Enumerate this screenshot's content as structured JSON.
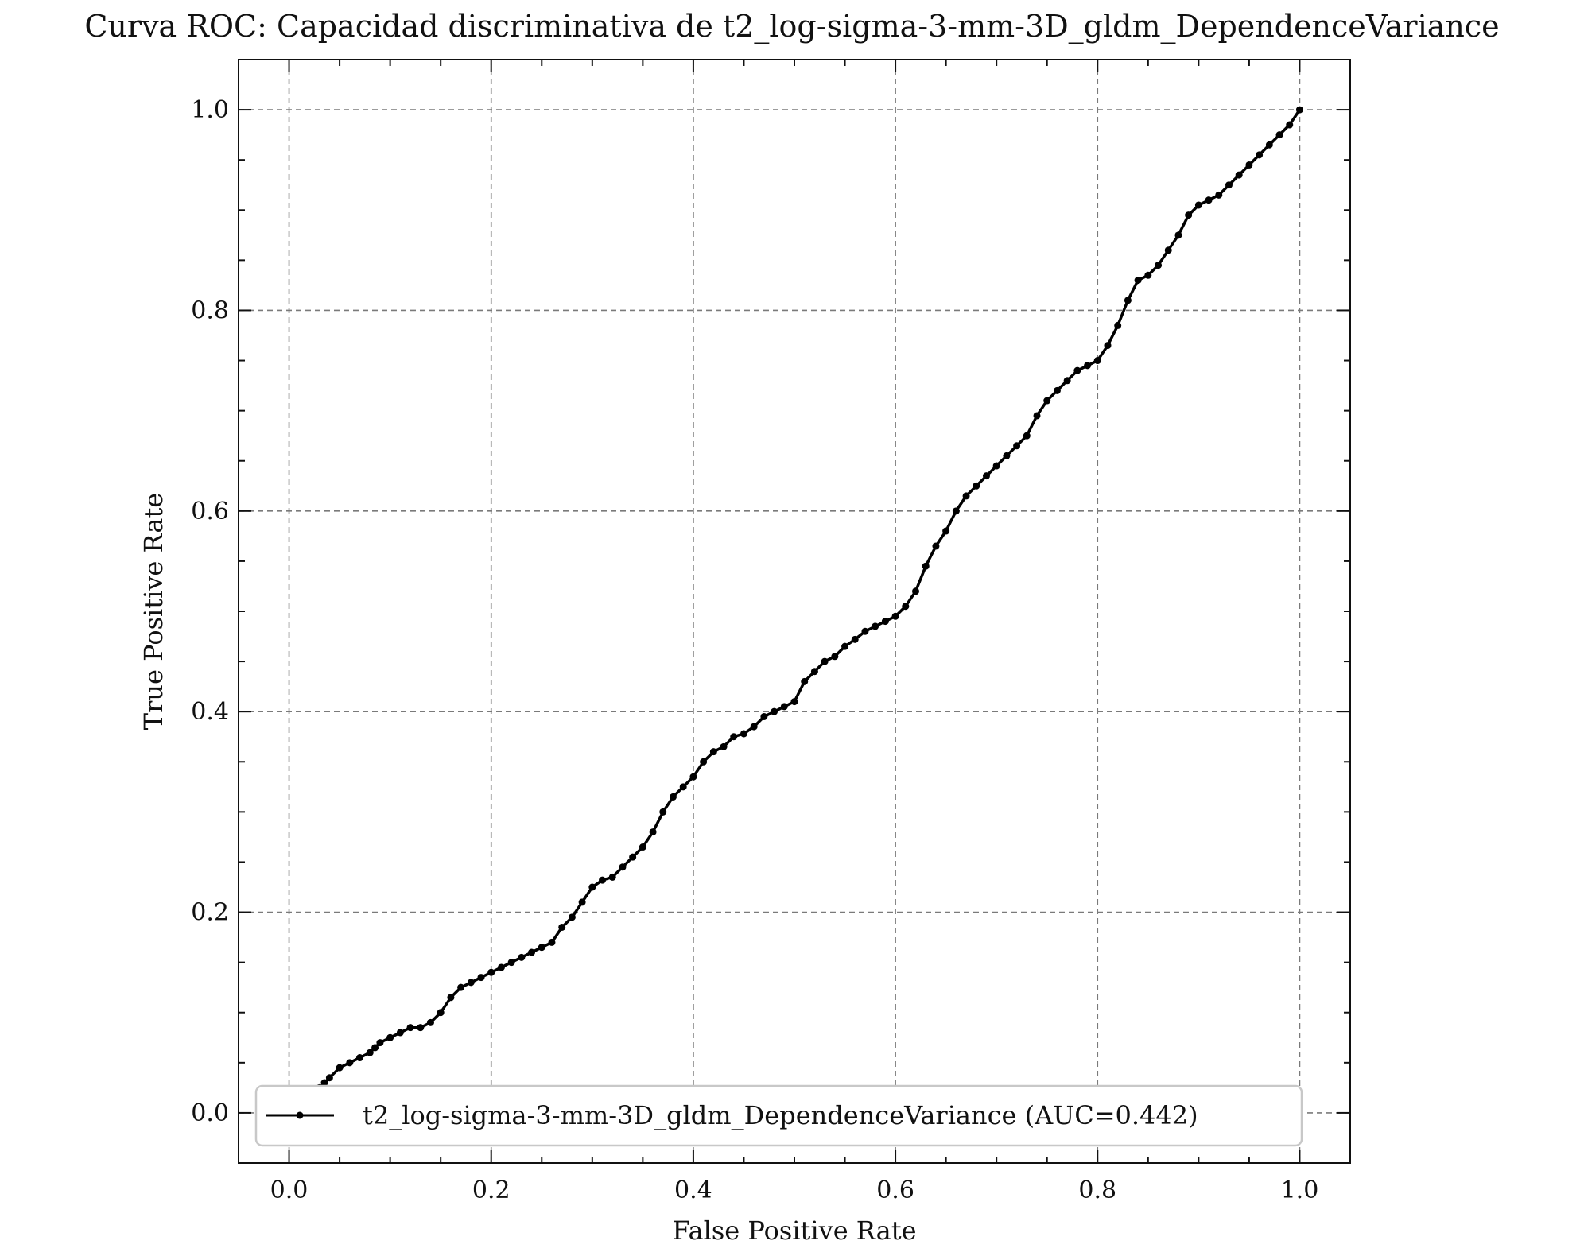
{
  "chart_data": {
    "type": "line",
    "title": "Curva ROC: Capacidad discriminativa de t2_log-sigma-3-mm-3D_gldm_DependenceVariance",
    "xlabel": "False Positive Rate",
    "ylabel": "True Positive Rate",
    "xlim": [
      -0.05,
      1.05
    ],
    "ylim": [
      -0.05,
      1.05
    ],
    "xticks": [
      "0.0",
      "0.2",
      "0.4",
      "0.6",
      "0.8",
      "1.0"
    ],
    "yticks": [
      "0.0",
      "0.2",
      "0.4",
      "0.6",
      "0.8",
      "1.0"
    ],
    "grid": true,
    "legend_position": "lower right",
    "series": [
      {
        "name": "t2_log-sigma-3-mm-3D_gldm_DependenceVariance (AUC=0.442)",
        "color": "#000000",
        "marker": "dot",
        "x": [
          0.0,
          0.01,
          0.02,
          0.03,
          0.035,
          0.04,
          0.05,
          0.06,
          0.07,
          0.08,
          0.085,
          0.09,
          0.1,
          0.11,
          0.12,
          0.13,
          0.14,
          0.15,
          0.16,
          0.17,
          0.18,
          0.19,
          0.2,
          0.21,
          0.22,
          0.23,
          0.24,
          0.25,
          0.26,
          0.27,
          0.28,
          0.29,
          0.3,
          0.31,
          0.32,
          0.33,
          0.34,
          0.35,
          0.36,
          0.37,
          0.38,
          0.39,
          0.4,
          0.41,
          0.42,
          0.43,
          0.44,
          0.45,
          0.46,
          0.47,
          0.48,
          0.49,
          0.5,
          0.51,
          0.52,
          0.53,
          0.54,
          0.55,
          0.56,
          0.57,
          0.58,
          0.59,
          0.6,
          0.61,
          0.62,
          0.63,
          0.64,
          0.65,
          0.66,
          0.67,
          0.68,
          0.69,
          0.7,
          0.71,
          0.72,
          0.73,
          0.74,
          0.75,
          0.76,
          0.77,
          0.78,
          0.79,
          0.8,
          0.81,
          0.82,
          0.83,
          0.84,
          0.85,
          0.86,
          0.87,
          0.88,
          0.89,
          0.9,
          0.91,
          0.92,
          0.93,
          0.94,
          0.95,
          0.96,
          0.97,
          0.98,
          0.99,
          1.0
        ],
        "y": [
          0.0,
          0.01,
          0.02,
          0.025,
          0.03,
          0.035,
          0.045,
          0.05,
          0.055,
          0.06,
          0.065,
          0.07,
          0.075,
          0.08,
          0.085,
          0.085,
          0.09,
          0.1,
          0.115,
          0.125,
          0.13,
          0.135,
          0.14,
          0.145,
          0.15,
          0.155,
          0.16,
          0.165,
          0.17,
          0.185,
          0.195,
          0.21,
          0.225,
          0.232,
          0.235,
          0.245,
          0.255,
          0.265,
          0.28,
          0.3,
          0.315,
          0.325,
          0.335,
          0.35,
          0.36,
          0.365,
          0.375,
          0.378,
          0.385,
          0.395,
          0.4,
          0.405,
          0.41,
          0.43,
          0.44,
          0.45,
          0.455,
          0.465,
          0.472,
          0.48,
          0.485,
          0.49,
          0.495,
          0.505,
          0.52,
          0.545,
          0.565,
          0.58,
          0.6,
          0.615,
          0.625,
          0.635,
          0.645,
          0.655,
          0.665,
          0.675,
          0.695,
          0.71,
          0.72,
          0.73,
          0.74,
          0.745,
          0.75,
          0.765,
          0.785,
          0.81,
          0.83,
          0.835,
          0.845,
          0.86,
          0.875,
          0.895,
          0.905,
          0.91,
          0.915,
          0.925,
          0.935,
          0.945,
          0.955,
          0.965,
          0.975,
          0.985,
          1.0
        ]
      }
    ]
  }
}
